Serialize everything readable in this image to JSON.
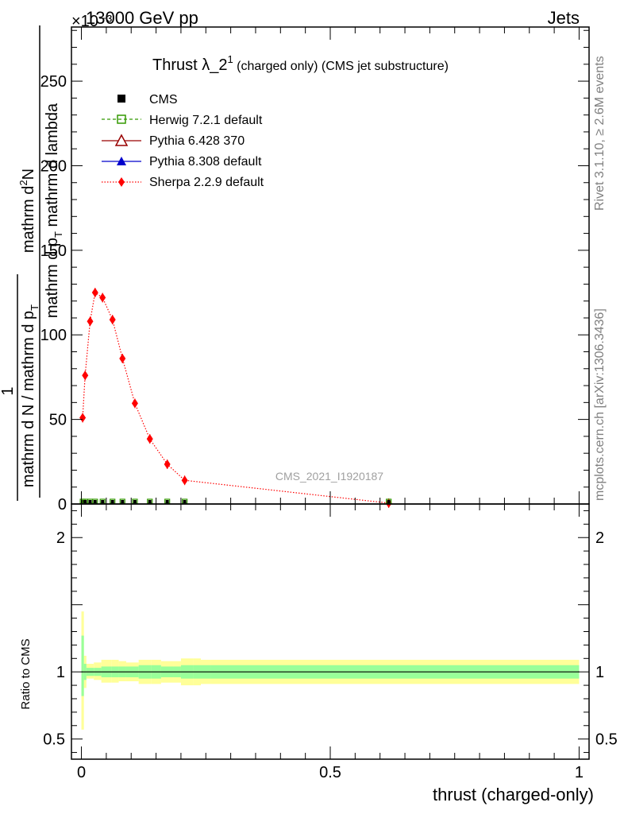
{
  "header": {
    "energy": "13000 GeV pp",
    "category": "Jets",
    "exponent": "×10⁻³"
  },
  "side": {
    "rivet": "Rivet 3.1.10, ≥ 2.6M events",
    "site": "mcplots.cern.ch [arXiv:1306.3436]"
  },
  "watermark": "CMS_2021_I1920187",
  "colors": {
    "cms": "#000000",
    "herwig": "#339900",
    "pythia6": "#990000",
    "pythia8": "#0000cc",
    "sherpa": "#ff0000",
    "band_outer": "#ffff99",
    "band_inner": "#99ff99"
  },
  "chart_data": [
    {
      "type": "line",
      "title_main": "Thrust λ_2",
      "title_sup": "1",
      "title_suffix": " (charged only) (CMS jet substructure)",
      "ylabel": {
        "numerator_1": "mathrm d",
        "numerator_sup": "2",
        "numerator_2": "N",
        "denominator_1": "mathrm d p",
        "denominator_sub1": "T",
        "denominator_2": " mathrm d lambda",
        "prefactor_num": "1",
        "prefactor_den_1": "mathrm d N / mathrm d p",
        "prefactor_den_sub": "T"
      },
      "xlim": [
        -0.02,
        1.02
      ],
      "ylim": [
        0,
        282
      ],
      "y_scale_note": "×10⁻³",
      "yticks": [
        0,
        50,
        100,
        150,
        200,
        250
      ],
      "ytick_labels": [
        "0",
        "50",
        "100",
        "150",
        "200",
        "250"
      ],
      "legend_position": "top-left",
      "legend": [
        "CMS",
        "Herwig 7.2.1 default",
        "Pythia 6.428 370",
        "Pythia 8.308 default",
        "Sherpa 2.2.9 default"
      ],
      "series": [
        {
          "name": "Sherpa 2.2.9 default",
          "x": [
            0.0025,
            0.0075,
            0.0175,
            0.0275,
            0.0425,
            0.0625,
            0.0825,
            0.1075,
            0.1375,
            0.1725,
            0.2075,
            0.6175
          ],
          "y": [
            51,
            76,
            108,
            125,
            122,
            109,
            86,
            59.5,
            38.5,
            23.5,
            14,
            0.5
          ]
        }
      ],
      "baseline_markers_x": [
        0.0025,
        0.0075,
        0.0175,
        0.0275,
        0.0425,
        0.0625,
        0.0825,
        0.1075,
        0.1375,
        0.1725,
        0.2075,
        0.6175
      ]
    },
    {
      "type": "area",
      "ylabel": "Ratio to CMS",
      "xlabel": "thrust (charged-only)",
      "xlim": [
        -0.02,
        1.02
      ],
      "ylim": [
        0.35,
        2.25
      ],
      "yticks": [
        0.5,
        1,
        2
      ],
      "ytick_labels": [
        "0.5",
        "1",
        "2"
      ],
      "xticks": [
        0,
        0.5,
        1
      ],
      "xtick_labels": [
        "0",
        "0.5",
        "1"
      ],
      "bins": [
        0,
        0.005,
        0.01,
        0.025,
        0.04,
        0.06,
        0.075,
        0.09,
        0.115,
        0.14,
        0.16,
        0.185,
        0.2,
        0.225,
        0.24,
        0.26,
        1.0
      ],
      "outer_lo": [
        0.57,
        0.88,
        0.95,
        0.94,
        0.92,
        0.92,
        0.93,
        0.93,
        0.91,
        0.91,
        0.92,
        0.92,
        0.9,
        0.9,
        0.91,
        0.91
      ],
      "outer_hi": [
        1.45,
        1.12,
        1.06,
        1.07,
        1.09,
        1.09,
        1.08,
        1.07,
        1.09,
        1.09,
        1.08,
        1.08,
        1.1,
        1.1,
        1.09,
        1.09
      ],
      "inner_lo": [
        0.82,
        0.94,
        0.97,
        0.97,
        0.96,
        0.96,
        0.96,
        0.96,
        0.95,
        0.95,
        0.96,
        0.96,
        0.95,
        0.95,
        0.95,
        0.95
      ],
      "inner_hi": [
        1.27,
        1.06,
        1.03,
        1.03,
        1.04,
        1.04,
        1.04,
        1.04,
        1.05,
        1.05,
        1.04,
        1.04,
        1.05,
        1.05,
        1.05,
        1.05
      ]
    }
  ]
}
